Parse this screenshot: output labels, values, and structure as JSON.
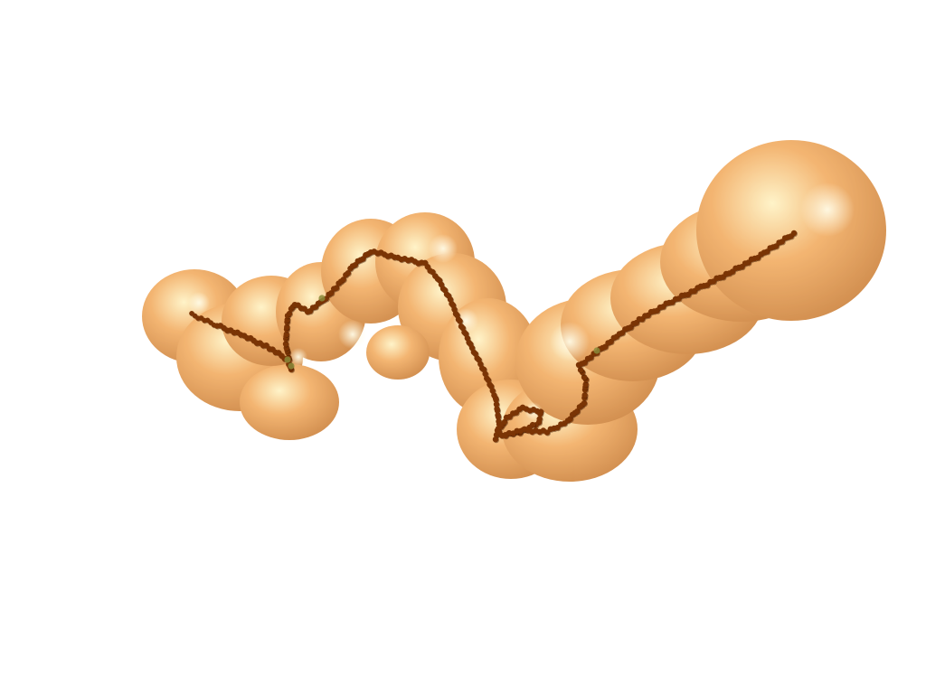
{
  "scene": {
    "background_color": "#ffffff",
    "surface": {
      "name": "molecular-envelope-surface",
      "base_color": "#f2a95a",
      "highlight_color": "#fff2c0",
      "shadow_color": "#c97a30",
      "opacity": 0.85
    },
    "backbone_trace": {
      "name": "backbone-bead-trace",
      "bead_color": "#7a3405",
      "bead_shadow_color": "#3d1800",
      "highlight_bead_color": "#8a8a3a"
    }
  }
}
